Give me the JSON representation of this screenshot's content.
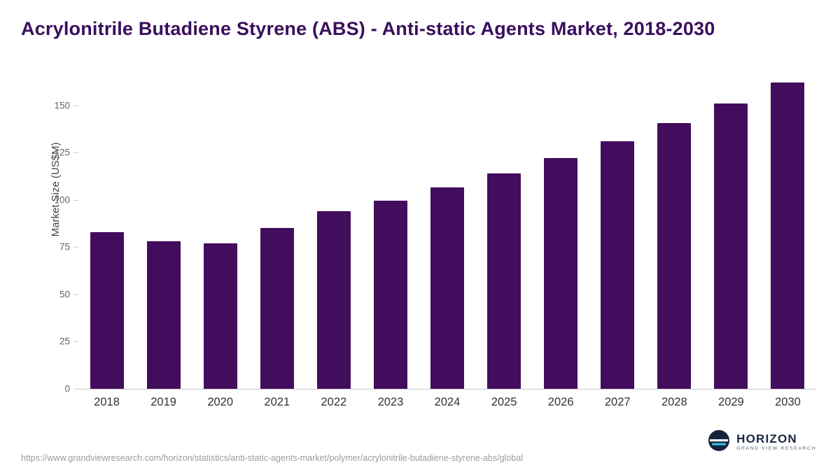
{
  "title": "Acrylonitrile Butadiene Styrene (ABS) - Anti-static Agents Market, 2018-2030",
  "chart_data": {
    "type": "bar",
    "title": "Acrylonitrile Butadiene Styrene (ABS) - Anti-static Agents Market, 2018-2030",
    "categories": [
      "2018",
      "2019",
      "2020",
      "2021",
      "2022",
      "2023",
      "2024",
      "2025",
      "2026",
      "2027",
      "2028",
      "2029",
      "2030"
    ],
    "values": [
      83,
      78,
      77,
      85,
      94,
      99.5,
      106.5,
      114,
      122,
      131,
      140.5,
      151,
      162
    ],
    "xlabel": "",
    "ylabel": "Market Size (US$M)",
    "ylim": [
      0,
      165
    ],
    "yticks": [
      0,
      25,
      50,
      75,
      100,
      125,
      150
    ],
    "bar_color": "#430d5d",
    "grid": false,
    "legend": false
  },
  "footer": {
    "source_url": "https://www.grandviewresearch.com/horizon/statistics/anti-static-agents-market/polymer/acrylonitrile-butadiene-styrene-abs/global",
    "logo_title": "HORIZON",
    "logo_subtitle": "GRAND VIEW RESEARCH"
  },
  "colors": {
    "title_text": "#3a0e5c",
    "bar": "#430d5d",
    "tick_text": "#666666",
    "year_text": "#333333",
    "source_text": "#9b9b9b",
    "logo_navy": "#16223e",
    "logo_teal": "#36c2e2"
  }
}
